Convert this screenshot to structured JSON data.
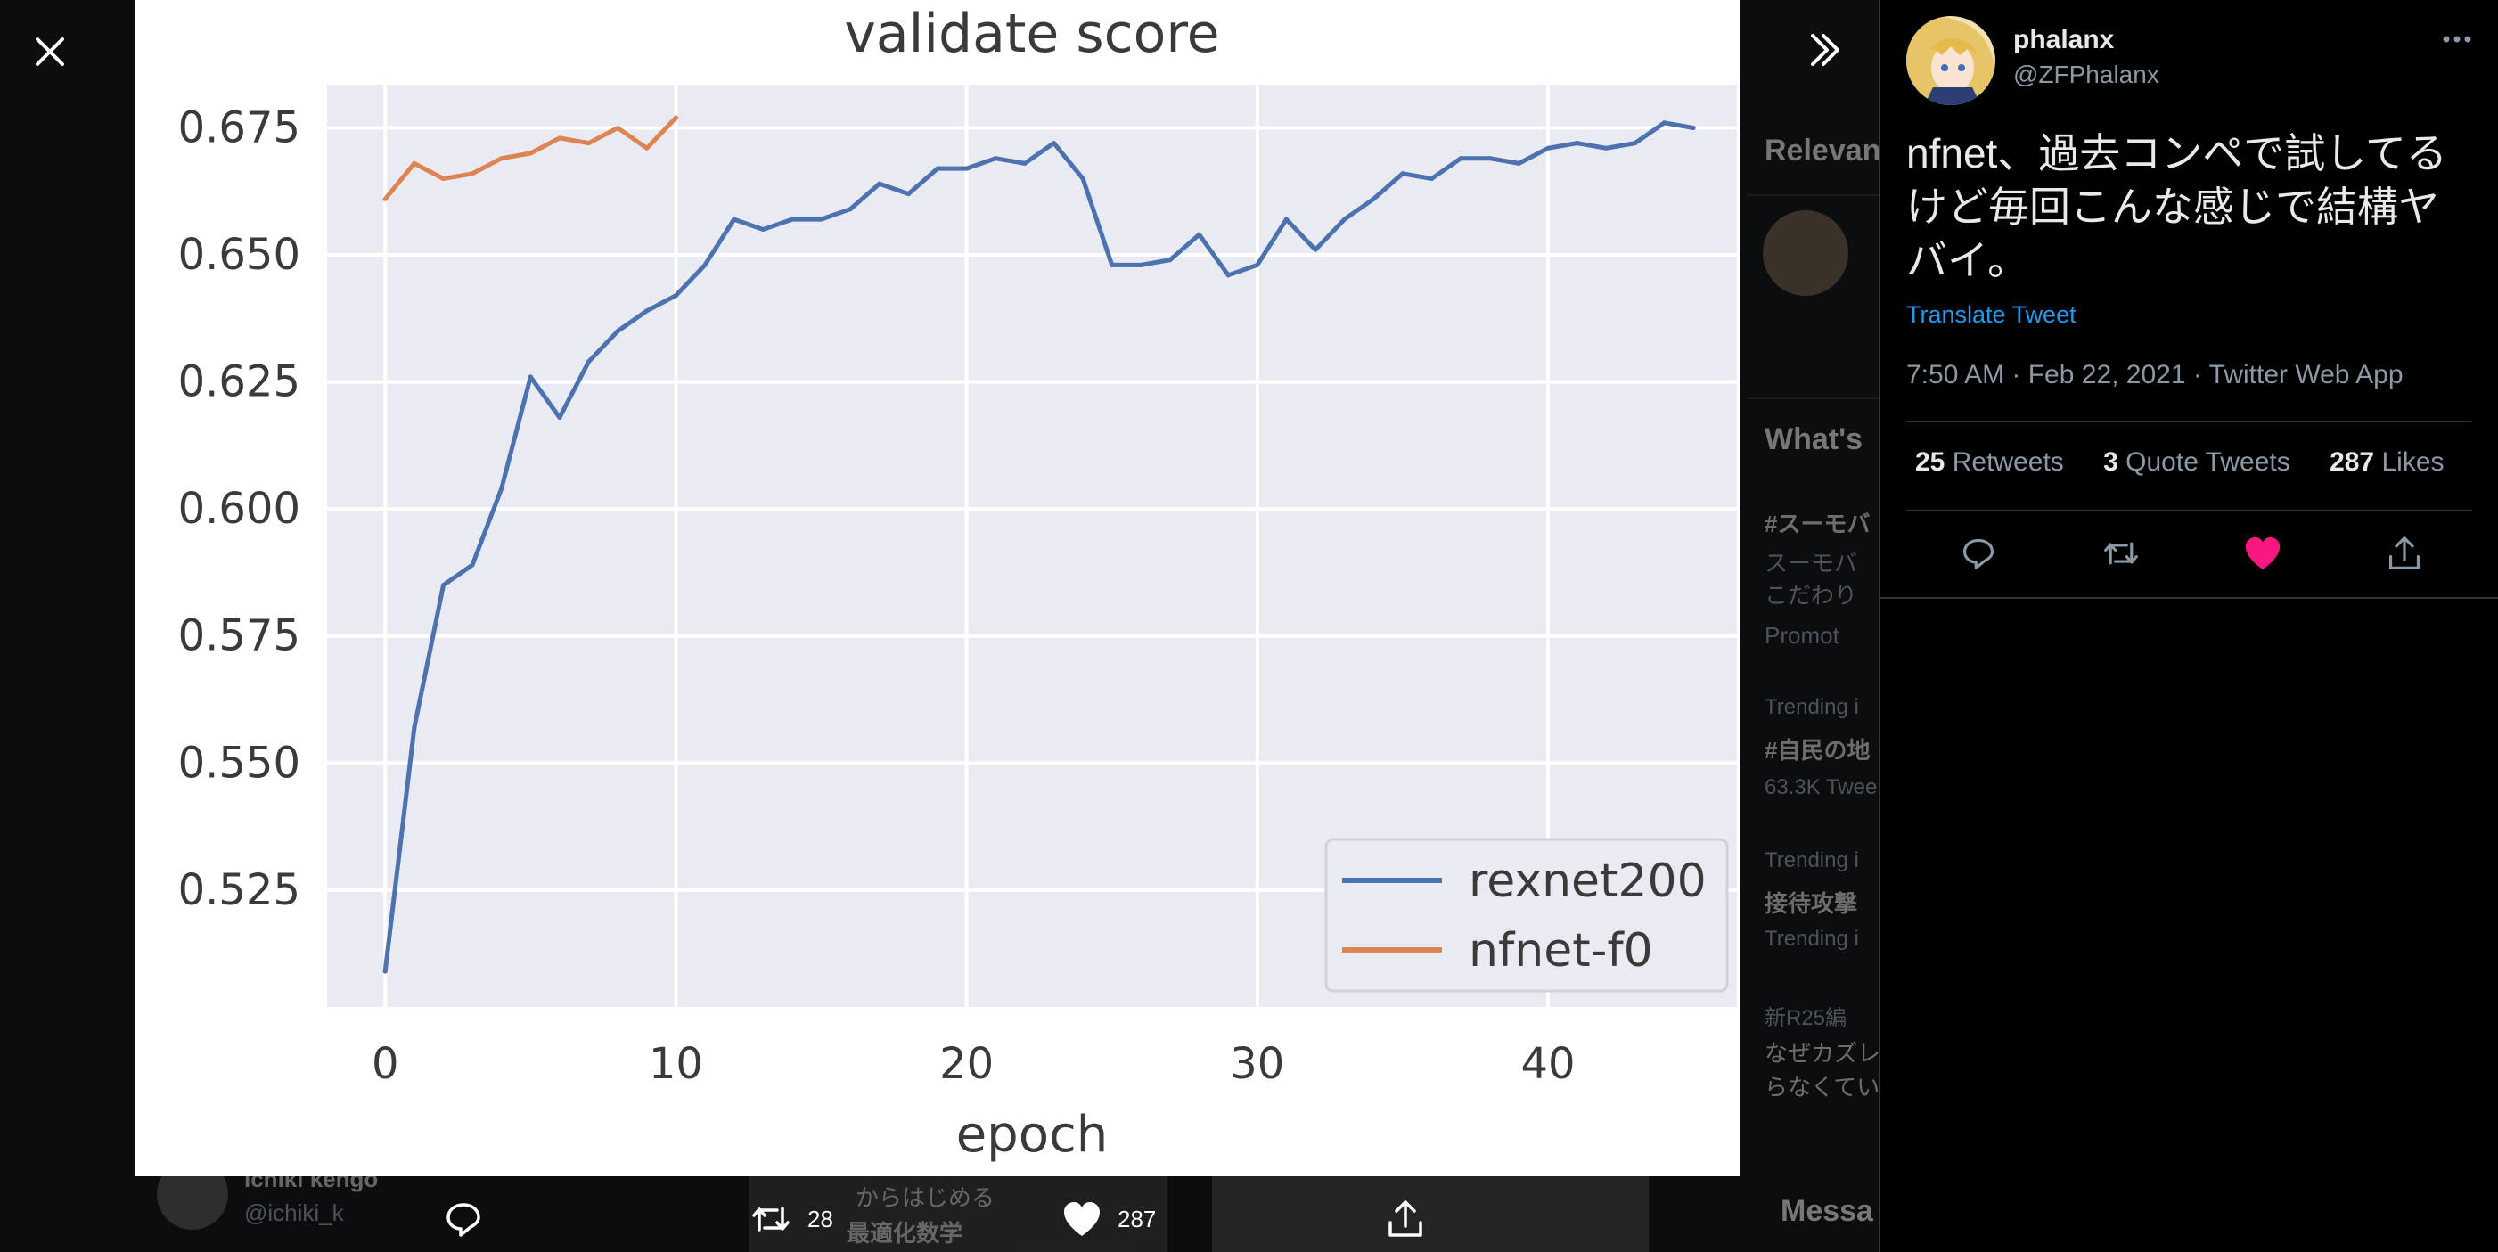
{
  "background": {
    "sidebar": {
      "relevant_heading": "Relevan",
      "whats_heading": "What's",
      "trend1_tag": "#スーモバ",
      "trend1_line1": "スーモバ",
      "trend1_line2": "こだわり",
      "trend1_promoted": "Promot",
      "trend2_context": "Trending i",
      "trend2_tag": "#自民の地",
      "trend2_count": "63.3K Twee",
      "trend3_context": "Trending i",
      "trend3_tag": "接待攻撃",
      "trend3_context2": "Trending i",
      "news_source": "新R25編",
      "news_line1": "なぜカズレ",
      "news_line2": "らなくてい",
      "messages_label": "Messa"
    },
    "below": {
      "user_name": "ichiki kengo",
      "user_handle": "@ichiki_k",
      "thumb_text1": "からはじめる",
      "thumb_text2": "最適化数学"
    }
  },
  "media_bar": {
    "retweet_count": "28",
    "like_count": "287"
  },
  "tweet": {
    "display_name": "phalanx",
    "handle": "@ZFPhalanx",
    "text": "nfnet、過去コンペで試してるけど毎回こんな感じで結構ヤバイ。",
    "translate": "Translate Tweet",
    "timestamp": "7:50 AM · Feb 22, 2021 · Twitter Web App",
    "retweets_count": "25",
    "retweets_label": "Retweets",
    "quotes_count": "3",
    "quotes_label": "Quote Tweets",
    "likes_count": "287",
    "likes_label": "Likes"
  },
  "colors": {
    "accent": "#1d9bf0",
    "like": "#f91880",
    "series1": "#4c72b0",
    "series2": "#dd8452",
    "plot_bg": "#eaeaf2"
  },
  "chart_data": {
    "type": "line",
    "title": "validate score",
    "xlabel": "epoch",
    "ylabel": "",
    "xlim": [
      -2,
      46.5
    ],
    "ylim": [
      0.502,
      0.6835
    ],
    "xticks": [
      0,
      10,
      20,
      30,
      40
    ],
    "yticks": [
      0.525,
      0.55,
      0.575,
      0.6,
      0.625,
      0.65,
      0.675
    ],
    "ytick_labels": [
      "0.525",
      "0.550",
      "0.575",
      "0.600",
      "0.625",
      "0.650",
      "0.675"
    ],
    "grid": true,
    "legend": "lower right",
    "series": [
      {
        "name": "rexnet200",
        "color": "#4c72b0",
        "x": [
          0,
          1,
          2,
          3,
          4,
          5,
          6,
          7,
          8,
          9,
          10,
          11,
          12,
          13,
          14,
          15,
          16,
          17,
          18,
          19,
          20,
          21,
          22,
          23,
          24,
          25,
          26,
          27,
          28,
          29,
          30,
          31,
          32,
          33,
          34,
          35,
          36,
          37,
          38,
          39,
          40,
          41,
          42,
          43,
          44,
          45
        ],
        "values": [
          0.509,
          0.557,
          0.585,
          0.589,
          0.604,
          0.626,
          0.618,
          0.629,
          0.635,
          0.639,
          0.642,
          0.648,
          0.657,
          0.655,
          0.657,
          0.657,
          0.659,
          0.664,
          0.662,
          0.667,
          0.667,
          0.669,
          0.668,
          0.672,
          0.665,
          0.648,
          0.648,
          0.649,
          0.654,
          0.646,
          0.648,
          0.657,
          0.651,
          0.657,
          0.661,
          0.666,
          0.665,
          0.669,
          0.669,
          0.668,
          0.671,
          0.672,
          0.671,
          0.672,
          0.676,
          0.675
        ]
      },
      {
        "name": "nfnet-f0",
        "color": "#dd8452",
        "x": [
          0,
          1,
          2,
          3,
          4,
          5,
          6,
          7,
          8,
          9,
          10
        ],
        "values": [
          0.661,
          0.668,
          0.665,
          0.666,
          0.669,
          0.67,
          0.673,
          0.672,
          0.675,
          0.671,
          0.677
        ]
      }
    ]
  }
}
